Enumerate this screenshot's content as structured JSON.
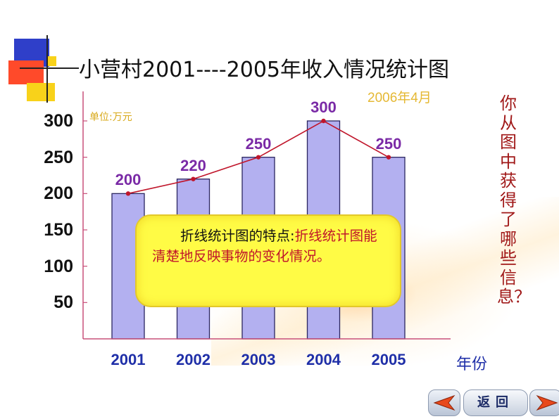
{
  "title": "小营村2001----2005年收入情况统计图",
  "date": "2006年4月",
  "unit_label": "单位:万元",
  "note": {
    "lead": "折线统计图的特点:",
    "rest": "折线统计图能清楚地反映事物的变化情况。"
  },
  "question": "你从图中获得了哪些信息？",
  "nav": {
    "back_label": "返回"
  },
  "colors": {
    "bar_fill": "#b3b0f0",
    "bar_stroke": "#2b2660",
    "line": "#c0162b",
    "axis": "#c8507a",
    "note_bg": "#fffb45",
    "x_tick": "#1f2fa8",
    "data_label": "#7a2aa6"
  },
  "chart_data": {
    "type": "bar",
    "overlay": "line",
    "categories": [
      "2001",
      "2002",
      "2003",
      "2004",
      "2005"
    ],
    "values": [
      200,
      220,
      250,
      300,
      250
    ],
    "data_labels": [
      "200",
      "220",
      "250",
      "300",
      "250"
    ],
    "yticks": [
      "300",
      "250",
      "200",
      "150",
      "100",
      "50"
    ],
    "ytick_values": [
      300,
      250,
      200,
      150,
      100,
      50
    ],
    "ylim": [
      0,
      300
    ],
    "xlabel": "年份",
    "ylabel": "单位:万元",
    "grid": false,
    "legend": "none"
  }
}
